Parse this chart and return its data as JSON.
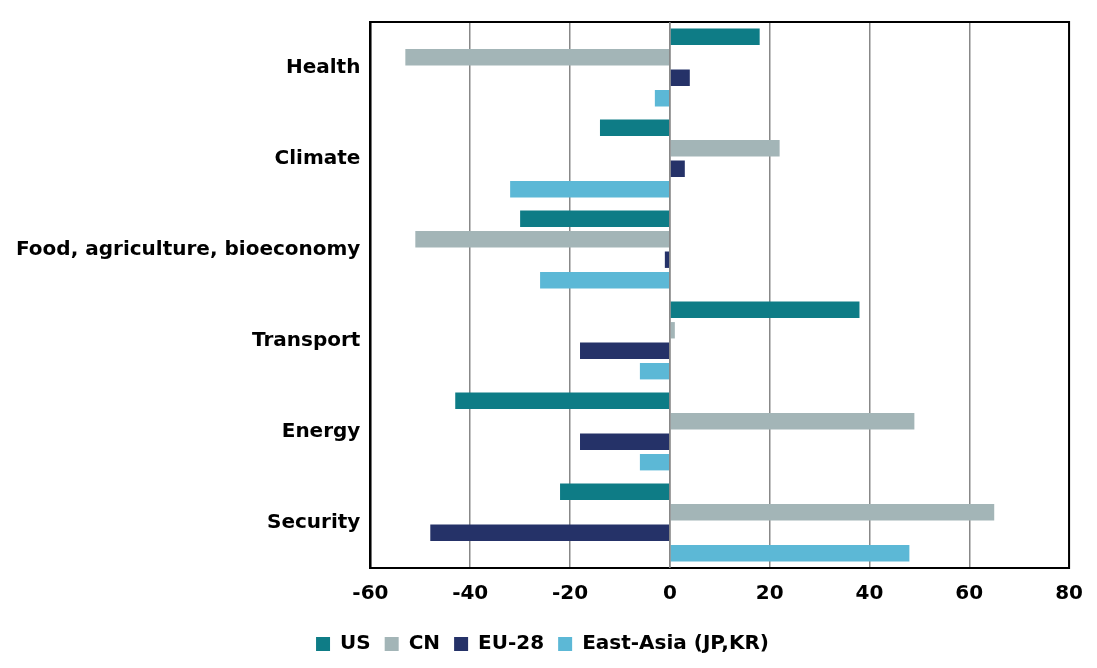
{
  "chart_data": {
    "type": "bar",
    "orientation": "horizontal",
    "categories": [
      "Health",
      "Climate",
      "Food, agriculture, bioeconomy",
      "Transport",
      "Energy",
      "Security"
    ],
    "series": [
      {
        "name": "US",
        "color": "#0e7c86",
        "values": [
          18,
          -14,
          -30,
          38,
          -43,
          -22
        ]
      },
      {
        "name": "CN",
        "color": "#a3b5b7",
        "values": [
          -53,
          22,
          -51,
          1,
          49,
          65
        ]
      },
      {
        "name": "EU-28",
        "color": "#253268",
        "values": [
          4,
          3,
          -1,
          -18,
          -18,
          -48
        ]
      },
      {
        "name": "East-Asia (JP,KR)",
        "color": "#5cb8d6",
        "values": [
          -3,
          -32,
          -26,
          -6,
          -6,
          48
        ]
      }
    ],
    "xlim": [
      -60,
      80
    ],
    "xticks": [
      -60,
      -40,
      -20,
      0,
      20,
      40,
      60,
      80
    ],
    "grid": "x",
    "legend": "bottom"
  }
}
